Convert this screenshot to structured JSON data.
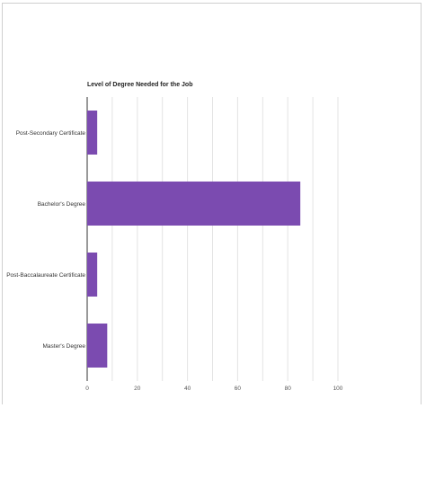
{
  "chart_data": {
    "type": "bar",
    "orientation": "horizontal",
    "title": "Level of Degree Needed for the Job",
    "categories": [
      "Post-Secondary Certificate",
      "Bachelor's Degree",
      "Post-Baccalaureate Certificate",
      "Master's Degree"
    ],
    "values": [
      4,
      85,
      4,
      8
    ],
    "xlim": [
      0,
      100
    ],
    "xticks": [
      "0",
      "20",
      "40",
      "60",
      "80",
      "100"
    ],
    "xtick_values": [
      0,
      20,
      40,
      60,
      80,
      100
    ],
    "minor_grid_step": 10,
    "grid": true,
    "legend": "none",
    "bar_color": "#7b4bb0",
    "grid_color": "#e3e3e3"
  }
}
